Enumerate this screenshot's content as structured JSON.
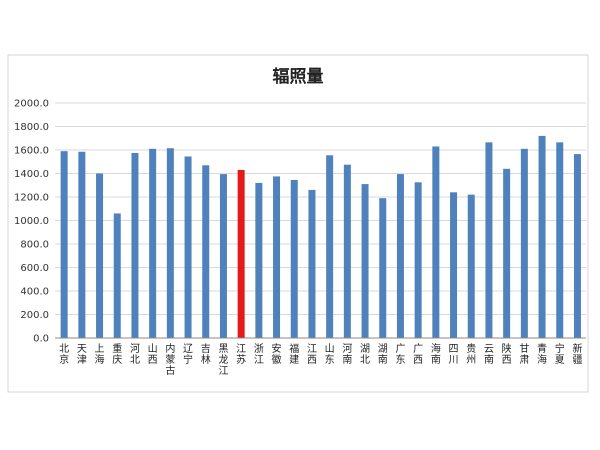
{
  "chart_data": {
    "type": "bar",
    "title": "辐照量",
    "xlabel": "",
    "ylabel": "",
    "ylim": [
      0,
      2000
    ],
    "yticks": [
      "0.0",
      "200.0",
      "400.0",
      "600.0",
      "800.0",
      "1000.0",
      "1200.0",
      "1400.0",
      "1600.0",
      "1800.0",
      "2000.0"
    ],
    "grid": true,
    "legend": "none",
    "bar_color": "#4f81bd",
    "highlight_color": "#e3191a",
    "highlight_index": 10,
    "categories": [
      "北京",
      "天津",
      "上海",
      "重庆",
      "河北",
      "山西",
      "内蒙古",
      "辽宁",
      "吉林",
      "黑龙江",
      "江苏",
      "浙江",
      "安徽",
      "福建",
      "江西",
      "山东",
      "河南",
      "湖北",
      "湖南",
      "广东",
      "广西",
      "海南",
      "四川",
      "贵州",
      "云南",
      "陕西",
      "甘肃",
      "青海",
      "宁夏",
      "新疆"
    ],
    "values": [
      1590,
      1585,
      1400,
      1060,
      1575,
      1610,
      1615,
      1545,
      1470,
      1395,
      1430,
      1320,
      1375,
      1345,
      1260,
      1555,
      1475,
      1310,
      1190,
      1395,
      1325,
      1630,
      1240,
      1220,
      1665,
      1440,
      1610,
      1720,
      1665,
      1565
    ]
  }
}
